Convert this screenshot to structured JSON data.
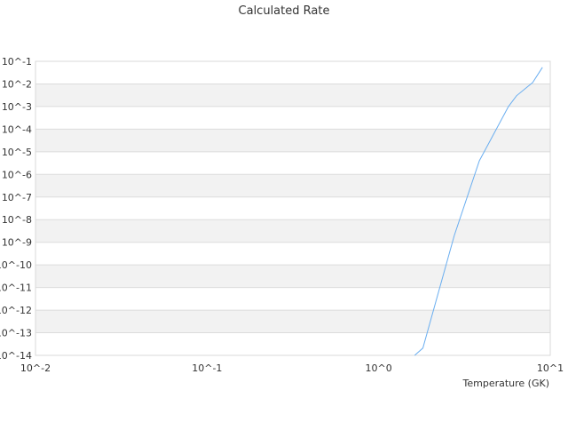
{
  "chart_data": {
    "type": "line",
    "title": "Calculated Rate",
    "xlabel": "Temperature (GK)",
    "ylabel": "",
    "x_scale": "log",
    "y_scale": "log",
    "xlim": [
      0.01,
      10
    ],
    "ylim": [
      1e-14,
      0.1
    ],
    "x_ticks": [
      {
        "value": 0.01,
        "label": "10^-2"
      },
      {
        "value": 0.1,
        "label": "10^-1"
      },
      {
        "value": 1,
        "label": "10^0"
      },
      {
        "value": 10,
        "label": "10^1"
      }
    ],
    "y_ticks": [
      {
        "exp": -1,
        "label": "10^-1"
      },
      {
        "exp": -2,
        "label": "10^-2"
      },
      {
        "exp": -3,
        "label": "10^-3"
      },
      {
        "exp": -4,
        "label": "10^-4"
      },
      {
        "exp": -5,
        "label": "10^-5"
      },
      {
        "exp": -6,
        "label": "10^-6"
      },
      {
        "exp": -7,
        "label": "10^-7"
      },
      {
        "exp": -8,
        "label": "10^-8"
      },
      {
        "exp": -9,
        "label": "10^-9"
      },
      {
        "exp": -10,
        "label": "10^-10"
      },
      {
        "exp": -11,
        "label": "10^-11"
      },
      {
        "exp": -12,
        "label": "10^-12"
      },
      {
        "exp": -13,
        "label": "10^-13"
      },
      {
        "exp": -14,
        "label": "10^-14"
      }
    ],
    "grid": true,
    "alternating_bands": true,
    "legend": "none",
    "series": [
      {
        "color": "#6aaef0",
        "x": [
          1.62,
          1.81,
          2.76,
          3.86,
          4.5,
          5.71,
          6.36,
          7.9,
          9.0
        ],
        "y": [
          1e-14,
          2.1e-14,
          2e-09,
          4e-06,
          3.5e-05,
          0.001,
          0.003,
          0.0115,
          0.054
        ]
      }
    ]
  }
}
